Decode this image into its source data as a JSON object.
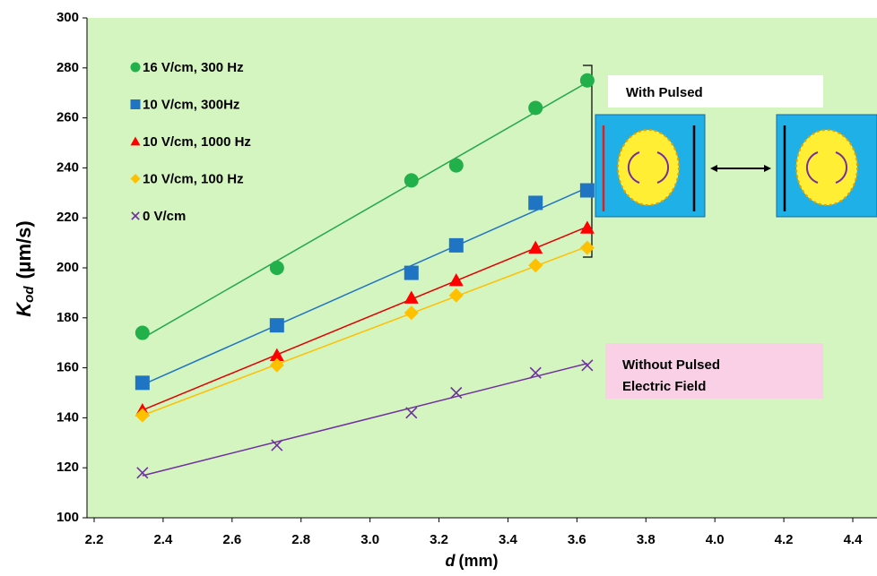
{
  "chart_data": {
    "type": "scatter",
    "ylabel_symbol": "K",
    "ylabel_subscript": "od",
    "ylabel_unit": "(µm/s)",
    "xlabel_symbol": "d",
    "xlabel_unit": "(mm)",
    "x": [
      2.34,
      2.73,
      3.12,
      3.25,
      3.48,
      3.63
    ],
    "xlim": [
      2.2,
      4.4
    ],
    "xticks": [
      2.2,
      2.4,
      2.6,
      2.8,
      {
        "value": 3,
        "label": "3.0"
      },
      3.2,
      3.4,
      3.6,
      3.8,
      {
        "value": 4,
        "label": "4.0"
      },
      4.2,
      4.4
    ],
    "ylim": [
      100,
      300
    ],
    "yticks": [
      100,
      120,
      140,
      160,
      180,
      200,
      220,
      240,
      260,
      280,
      300
    ],
    "series": [
      {
        "name": "16 V/cm, 300 Hz",
        "color": "#22b04b",
        "line_color": "#22a84a",
        "marker": "circle",
        "values": [
          174,
          200,
          235,
          241,
          264,
          275
        ]
      },
      {
        "name": "10 V/cm, 300Hz",
        "color": "#1f74c4",
        "line_color": "#1f74c4",
        "marker": "square",
        "values": [
          154,
          177,
          198,
          209,
          226,
          231
        ]
      },
      {
        "name": "10 V/cm, 1000 Hz",
        "color": "#ff0000",
        "line_color": "#e00000",
        "marker": "triangle",
        "values": [
          143,
          165,
          188,
          195,
          208,
          216
        ]
      },
      {
        "name": "10 V/cm, 100 Hz",
        "color": "#ffc000",
        "line_color": "#ffc000",
        "marker": "diamond",
        "values": [
          141,
          161,
          182,
          189,
          201,
          208
        ]
      },
      {
        "name": "0 V/cm",
        "color": "#7030a0",
        "line_color": "#7030a0",
        "marker": "x",
        "values": [
          118,
          129,
          142,
          150,
          158,
          161
        ]
      }
    ],
    "annotations": [
      "With Pulsed",
      "Without Pulsed",
      "Electric Field"
    ]
  }
}
